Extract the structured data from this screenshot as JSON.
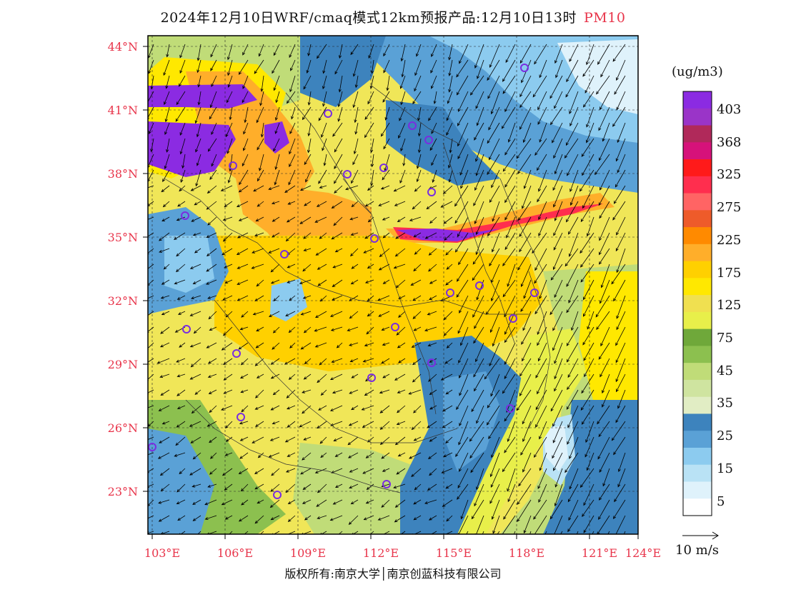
{
  "title": {
    "text": "2024年12月10日WRF/cmaq模式12km预报产品:12月10日13时",
    "pollutant": "PM10"
  },
  "unit": "(ug/m3)",
  "legend": {
    "levels": [
      "403",
      "368",
      "325",
      "275",
      "225",
      "175",
      "125",
      "75",
      "45",
      "35",
      "25",
      "15",
      "5"
    ],
    "colors": [
      "#8b2be2",
      "#9a34c8",
      "#b0295a",
      "#d6127a",
      "#ff1a1a",
      "#ff2e4e",
      "#ff6464",
      "#ee5b2a",
      "#ff8a00",
      "#ffae2a",
      "#ffd000",
      "#ffe800",
      "#f0e050",
      "#e8ef4a",
      "#6fa83a",
      "#8cc04f",
      "#c0dc78",
      "#cfe4a0",
      "#e1edc4",
      "#3d83bd",
      "#5aa1d6",
      "#8ccbef",
      "#b9e2f5",
      "#dff2fb",
      "#ffffff"
    ]
  },
  "axes": {
    "lat_labels": [
      "44°N",
      "41°N",
      "38°N",
      "35°N",
      "32°N",
      "29°N",
      "26°N",
      "23°N"
    ],
    "lon_labels": [
      "103°E",
      "106°E",
      "109°E",
      "112°E",
      "115°E",
      "118°E",
      "121°E",
      "124°E"
    ]
  },
  "wind_scale": {
    "label": "10 m/s"
  },
  "copyright": "版权所有:南京大学│南京创蓝科技有限公司"
}
